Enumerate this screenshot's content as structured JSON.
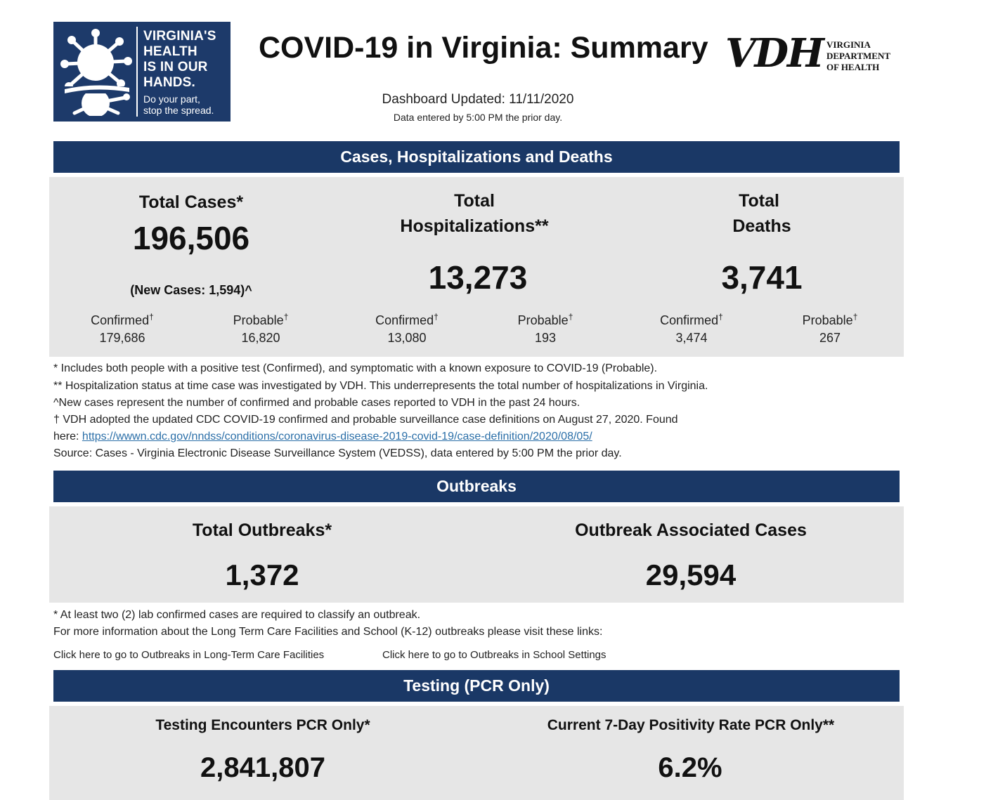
{
  "header": {
    "logo_lines": [
      "VIRGINIA'S",
      "HEALTH",
      "IS IN OUR",
      "HANDS."
    ],
    "logo_small_lines": [
      "Do your part,",
      "stop the spread."
    ],
    "title": "COVID-19 in Virginia: Summary",
    "vdh_letters": "VDH",
    "vdh_lines": [
      "VIRGINIA",
      "DEPARTMENT",
      "OF HEALTH"
    ],
    "dashboard_updated": "Dashboard Updated: 11/11/2020",
    "data_entered": "Data entered by 5:00 PM the prior day."
  },
  "cases_section": {
    "banner": "Cases, Hospitalizations and Deaths",
    "total_cases": {
      "label": "Total Cases*",
      "value": "196,506",
      "new_cases": "(New Cases: 1,594)^",
      "confirmed_label": "Confirmed",
      "confirmed_value": "179,686",
      "probable_label": "Probable",
      "probable_value": "16,820"
    },
    "total_hospitalizations": {
      "label_line1": "Total",
      "label_line2": "Hospitalizations**",
      "value": "13,273",
      "confirmed_label": "Confirmed",
      "confirmed_value": "13,080",
      "probable_label": "Probable",
      "probable_value": "193"
    },
    "total_deaths": {
      "label_line1": "Total",
      "label_line2": "Deaths",
      "value": "3,741",
      "confirmed_label": "Confirmed",
      "confirmed_value": "3,474",
      "probable_label": "Probable",
      "probable_value": "267"
    },
    "dagger": "†",
    "notes": [
      "* Includes both people with a positive test (Confirmed), and symptomatic with a known exposure to COVID-19 (Probable).",
      "** Hospitalization status at time case was investigated by VDH. This underrepresents the total number of hospitalizations in Virginia.",
      "^New cases represent the number of confirmed and probable cases reported to VDH in the past 24 hours.",
      "† VDH adopted the updated CDC COVID-19 confirmed and probable surveillance case definitions on August 27, 2020. Found"
    ],
    "note_here_prefix": "here: ",
    "note_link": "https://wwwn.cdc.gov/nndss/conditions/coronavirus-disease-2019-covid-19/case-definition/2020/08/05/",
    "source": "Source:  Cases - Virginia Electronic Disease Surveillance System (VEDSS), data entered by 5:00 PM the prior day."
  },
  "outbreaks_section": {
    "banner": "Outbreaks",
    "total_outbreaks_label": "Total Outbreaks*",
    "total_outbreaks_value": "1,372",
    "associated_cases_label": "Outbreak Associated Cases",
    "associated_cases_value": "29,594",
    "note1": "* At least two (2) lab confirmed cases are required to classify an outbreak.",
    "note2": "For more information about the Long Term Care Facilities and School (K-12) outbreaks please visit these links:",
    "link_ltc": "Click here to go to Outbreaks in Long-Term Care Facilities",
    "link_school": "Click here to go to Outbreaks in School Settings"
  },
  "testing_section": {
    "banner": "Testing (PCR Only)",
    "encounters_label": "Testing Encounters PCR Only*",
    "encounters_value": "2,841,807",
    "positivity_label": "Current 7-Day Positivity Rate PCR Only**",
    "positivity_value": "6.2%"
  },
  "colors": {
    "banner": "#1a3866",
    "logo_bg": "#1d3a6a",
    "panel": "#e6e6e6",
    "link": "#2b6fa8"
  },
  "icons": [
    "virus-hands-icon"
  ]
}
